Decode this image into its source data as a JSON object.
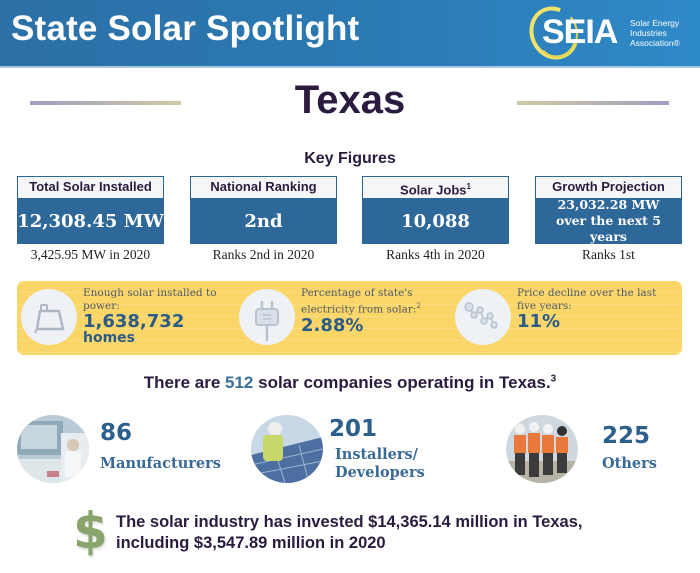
{
  "header": {
    "title": "State Solar Spotlight",
    "logo": {
      "mark": "SEIA",
      "line1": "Solar Energy",
      "line2": "Industries",
      "line3": "Association®"
    }
  },
  "state": "Texas",
  "key_figures": {
    "title": "Key Figures",
    "boxes": [
      {
        "label": "Total Solar Installed",
        "sup": "",
        "value": "12,308.45 MW",
        "sub": "3,425.95 MW in 2020"
      },
      {
        "label": "National Ranking",
        "sup": "",
        "value": "2nd",
        "sub": "Ranks 2nd in 2020"
      },
      {
        "label": "Solar Jobs",
        "sup": "1",
        "value": "10,088",
        "sub": "Ranks 4th in 2020"
      },
      {
        "label": "Growth Projection",
        "sup": "",
        "value": "23,032.28 MW over the next 5 years",
        "sub": "Ranks 1st"
      }
    ]
  },
  "facts": [
    {
      "icon": "house-icon",
      "text": "Enough solar installed to power:",
      "sup": "",
      "value": "1,638,732",
      "unit": "homes"
    },
    {
      "icon": "plug-icon",
      "text": "Percentage of state's electricity from solar:",
      "sup": "2",
      "value": "2.88%",
      "unit": ""
    },
    {
      "icon": "price-decline-icon",
      "text": "Price decline over the last five years:",
      "sup": "",
      "value": "11%",
      "unit": ""
    }
  ],
  "companies": {
    "prefix": "There are ",
    "count": "512",
    "suffix": " solar companies operating in Texas.",
    "sup": "3"
  },
  "categories": [
    {
      "value": "86",
      "label": "Manufacturers"
    },
    {
      "value": "201",
      "label_line1": "Installers/",
      "label_line2": "Developers"
    },
    {
      "value": "225",
      "label": "Others"
    }
  ],
  "investment": {
    "icon": "dollar-icon",
    "symbol": "$",
    "line1": "The solar industry has invested $14,365.14 million in Texas,",
    "line2": "including $3,547.89 million in 2020"
  },
  "colors": {
    "header_blue": "#2b70a6",
    "box_blue": "#2e6899",
    "band_yellow": "#fad568",
    "accent_blue": "#3b6e9a",
    "dollar_green": "#8aa56c",
    "title_dark": "#2a1b3f"
  }
}
